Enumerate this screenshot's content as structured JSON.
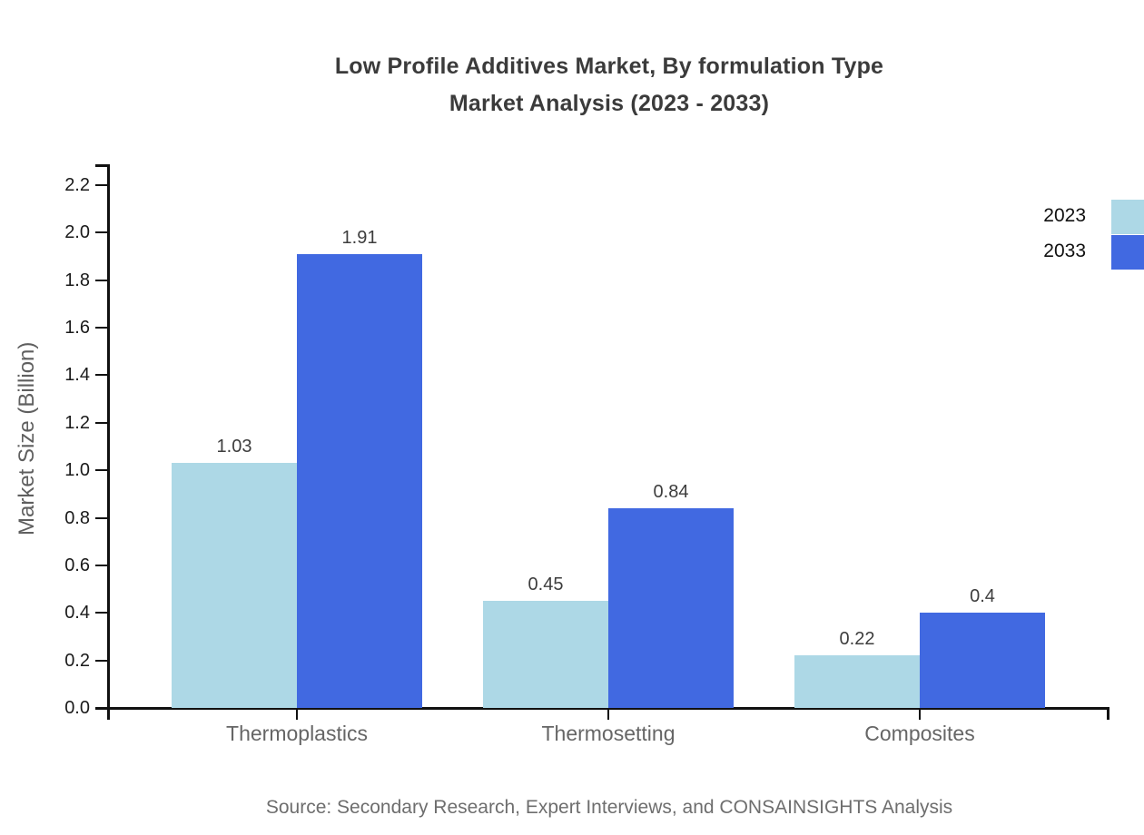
{
  "title": {
    "line1": "Low Profile Additives Market, By formulation Type",
    "line2": "Market Analysis (2023 - 2033)"
  },
  "y_axis_label": "Market Size (Billion)",
  "source_text": "Source: Secondary Research, Expert Interviews, and CONSAINSIGHTS Analysis",
  "legend": {
    "position": "upper-right",
    "items": [
      {
        "label": "2023",
        "color": "#ADD8E6"
      },
      {
        "label": "2033",
        "color": "#4169E1"
      }
    ]
  },
  "colors": {
    "background": "#ffffff",
    "axis": "#111111",
    "series_2023": "#ADD8E6",
    "series_2033": "#4169E1",
    "title_text": "#3b3b3b",
    "tick_text": "#1a1a1a",
    "category_text": "#666666",
    "value_text": "#3d3d3d",
    "source_text": "#6e6e6e"
  },
  "chart_data": {
    "type": "bar",
    "title": "Low Profile Additives Market, By formulation Type Market Analysis (2023 - 2033)",
    "categories": [
      "Thermoplastics",
      "Thermosetting",
      "Composites"
    ],
    "series": [
      {
        "name": "2023",
        "color": "#ADD8E6",
        "values": [
          1.03,
          0.45,
          0.22
        ],
        "value_labels": [
          "1.03",
          "0.45",
          "0.22"
        ]
      },
      {
        "name": "2033",
        "color": "#4169E1",
        "values": [
          1.91,
          0.84,
          0.4
        ],
        "value_labels": [
          "1.91",
          "0.84",
          "0.4"
        ]
      }
    ],
    "xlabel": "",
    "ylabel": "Market Size (Billion)",
    "ylim": [
      0.0,
      2.2
    ],
    "y_ticks": [
      "0.0",
      "0.2",
      "0.4",
      "0.6",
      "0.8",
      "1.0",
      "1.2",
      "1.4",
      "1.6",
      "1.8",
      "2.0",
      "2.2"
    ],
    "grid": false,
    "legend_position": "upper-right",
    "bar_value_labels_shown": true
  }
}
